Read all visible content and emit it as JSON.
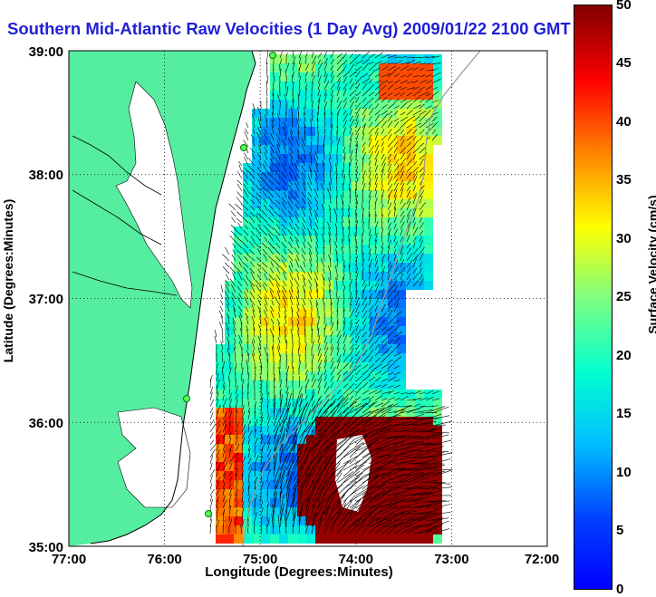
{
  "map": {
    "title": "Southern Mid-Atlantic Raw Velocities (1 Day Avg) 2009/01/22 2100 GMT",
    "x_axis_label": "Longitude (Degrees:Minutes)",
    "y_axis_label": "Latitude (Degrees:Minutes)",
    "x_ticks": [
      "77:00",
      "76:00",
      "75:00",
      "74:00",
      "73:00",
      "72:00"
    ],
    "y_ticks": [
      "39:00",
      "38:00",
      "37:00",
      "36:00",
      "35:00"
    ],
    "colorbar": {
      "label": "Surface Velocity (cm/s)",
      "ticks": [
        "50",
        "45",
        "40",
        "35",
        "30",
        "25",
        "20",
        "15",
        "10",
        "5",
        "0"
      ],
      "range": [
        0,
        50
      ]
    },
    "colors": {
      "land": "#55eea0",
      "water": "#ffffff",
      "grid": "#000000",
      "title": "#1f1fd6"
    }
  }
}
